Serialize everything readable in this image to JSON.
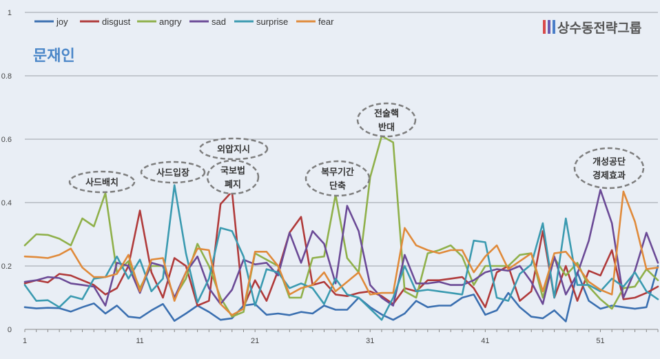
{
  "chart_data": {
    "type": "line",
    "title": "문재인",
    "brand": "상수동전략그룹",
    "ylim": [
      0,
      1
    ],
    "yticks": [
      "0",
      "0.2",
      "0.4",
      "0.6",
      "0.8",
      "1"
    ],
    "xtick_labels": [
      "1",
      "11",
      "21",
      "31",
      "41",
      "51"
    ],
    "legend_position": "top-left",
    "grid": true,
    "series": [
      {
        "name": "joy",
        "color": "#3a6fb0",
        "values": [
          0.07,
          0.066,
          0.068,
          0.067,
          0.056,
          0.07,
          0.082,
          0.05,
          0.075,
          0.04,
          0.036,
          0.06,
          0.08,
          0.027,
          0.05,
          0.075,
          0.055,
          0.03,
          0.035,
          0.075,
          0.08,
          0.046,
          0.05,
          0.045,
          0.055,
          0.05,
          0.075,
          0.062,
          0.062,
          0.1,
          0.07,
          0.047,
          0.03,
          0.05,
          0.09,
          0.07,
          0.075,
          0.075,
          0.1,
          0.11,
          0.046,
          0.06,
          0.115,
          0.07,
          0.04,
          0.035,
          0.06,
          0.025,
          0.18,
          0.09,
          0.065,
          0.075,
          0.07,
          0.065,
          0.07,
          0.2
        ]
      },
      {
        "name": "disgust",
        "color": "#b03a3a",
        "values": [
          0.145,
          0.155,
          0.148,
          0.175,
          0.17,
          0.155,
          0.14,
          0.11,
          0.13,
          0.2,
          0.375,
          0.18,
          0.1,
          0.225,
          0.2,
          0.075,
          0.09,
          0.395,
          0.435,
          0.07,
          0.155,
          0.09,
          0.185,
          0.305,
          0.355,
          0.14,
          0.15,
          0.11,
          0.105,
          0.115,
          0.12,
          0.105,
          0.08,
          0.13,
          0.12,
          0.155,
          0.155,
          0.16,
          0.165,
          0.13,
          0.07,
          0.18,
          0.2,
          0.09,
          0.12,
          0.31,
          0.1,
          0.2,
          0.09,
          0.185,
          0.17,
          0.25,
          0.095,
          0.1,
          0.115,
          0.135
        ]
      },
      {
        "name": "angry",
        "color": "#8fb04a",
        "values": [
          0.265,
          0.3,
          0.298,
          0.286,
          0.265,
          0.35,
          0.325,
          0.43,
          0.18,
          0.215,
          0.13,
          0.2,
          0.2,
          0.1,
          0.16,
          0.27,
          0.2,
          0.1,
          0.04,
          0.055,
          0.24,
          0.22,
          0.2,
          0.1,
          0.1,
          0.225,
          0.23,
          0.425,
          0.225,
          0.18,
          0.48,
          0.61,
          0.59,
          0.12,
          0.1,
          0.24,
          0.25,
          0.265,
          0.23,
          0.14,
          0.2,
          0.2,
          0.2,
          0.235,
          0.24,
          0.1,
          0.225,
          0.17,
          0.21,
          0.135,
          0.095,
          0.065,
          0.13,
          0.135,
          0.19,
          0.155
        ]
      },
      {
        "name": "sad",
        "color": "#6b4a96",
        "values": [
          0.15,
          0.155,
          0.165,
          0.162,
          0.145,
          0.14,
          0.135,
          0.075,
          0.21,
          0.2,
          0.115,
          0.21,
          0.2,
          0.1,
          0.18,
          0.23,
          0.13,
          0.08,
          0.125,
          0.22,
          0.205,
          0.21,
          0.17,
          0.305,
          0.21,
          0.31,
          0.27,
          0.145,
          0.39,
          0.31,
          0.14,
          0.1,
          0.075,
          0.235,
          0.145,
          0.145,
          0.15,
          0.14,
          0.14,
          0.155,
          0.18,
          0.19,
          0.185,
          0.2,
          0.15,
          0.08,
          0.23,
          0.11,
          0.175,
          0.28,
          0.44,
          0.335,
          0.1,
          0.185,
          0.305,
          0.21
        ]
      },
      {
        "name": "surprise",
        "color": "#3a9ab0",
        "values": [
          0.14,
          0.09,
          0.092,
          0.07,
          0.105,
          0.095,
          0.16,
          0.165,
          0.23,
          0.16,
          0.22,
          0.12,
          0.16,
          0.455,
          0.24,
          0.085,
          0.16,
          0.32,
          0.31,
          0.23,
          0.075,
          0.19,
          0.18,
          0.13,
          0.145,
          0.13,
          0.08,
          0.16,
          0.11,
          0.1,
          0.065,
          0.03,
          0.1,
          0.2,
          0.12,
          0.125,
          0.12,
          0.115,
          0.11,
          0.28,
          0.275,
          0.1,
          0.09,
          0.175,
          0.205,
          0.335,
          0.1,
          0.35,
          0.14,
          0.14,
          0.12,
          0.16,
          0.135,
          0.18,
          0.12,
          0.095
        ]
      },
      {
        "name": "fear",
        "color": "#e08a3a",
        "values": [
          0.23,
          0.228,
          0.225,
          0.235,
          0.255,
          0.195,
          0.165,
          0.165,
          0.175,
          0.235,
          0.12,
          0.22,
          0.225,
          0.09,
          0.18,
          0.255,
          0.25,
          0.08,
          0.045,
          0.065,
          0.245,
          0.245,
          0.2,
          0.11,
          0.13,
          0.14,
          0.18,
          0.12,
          0.15,
          0.18,
          0.11,
          0.115,
          0.115,
          0.32,
          0.265,
          0.25,
          0.24,
          0.25,
          0.25,
          0.18,
          0.23,
          0.265,
          0.19,
          0.215,
          0.24,
          0.12,
          0.24,
          0.245,
          0.2,
          0.15,
          0.125,
          0.11,
          0.435,
          0.34,
          0.19,
          0.195
        ]
      }
    ],
    "annotations": [
      {
        "lines": [
          "사드배치"
        ],
        "point": 8
      },
      {
        "lines": [
          "사드입장"
        ],
        "point": 14
      },
      {
        "lines": [
          "외압지시"
        ],
        "point": 19
      },
      {
        "lines": [
          "국보법",
          "폐지"
        ],
        "point": 19
      },
      {
        "lines": [
          "복무기간",
          "단축"
        ],
        "point": 28
      },
      {
        "lines": [
          "전술핵",
          "반대"
        ],
        "point": 32
      },
      {
        "lines": [
          "개성공단",
          "경제효과"
        ],
        "point": 51
      }
    ]
  }
}
